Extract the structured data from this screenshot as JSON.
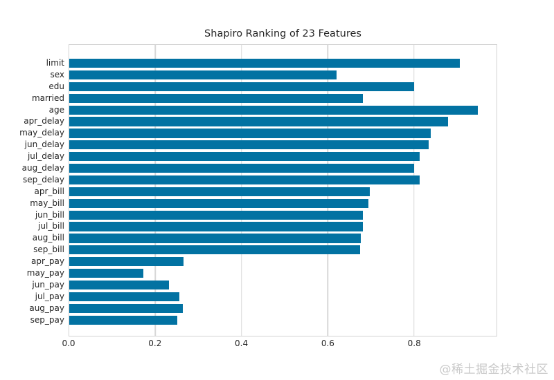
{
  "watermark": "@稀土掘金技术社区",
  "colors": {
    "bar": "#0272a2",
    "grid": "#d7d7d7",
    "spine": "#d2d2d2",
    "text": "#262626",
    "watermark": "#c9c9c9",
    "background": "#ffffff"
  },
  "chart_data": {
    "type": "bar",
    "orientation": "horizontal",
    "title": "Shapiro Ranking of 23 Features",
    "categories": [
      "limit",
      "sex",
      "edu",
      "married",
      "age",
      "apr_delay",
      "may_delay",
      "jun_delay",
      "jul_delay",
      "aug_delay",
      "sep_delay",
      "apr_bill",
      "may_bill",
      "jun_bill",
      "jul_bill",
      "aug_bill",
      "sep_bill",
      "apr_pay",
      "may_pay",
      "jun_pay",
      "jul_pay",
      "aug_pay",
      "sep_pay"
    ],
    "values": [
      0.907,
      0.621,
      0.801,
      0.682,
      0.949,
      0.879,
      0.839,
      0.834,
      0.813,
      0.8,
      0.813,
      0.698,
      0.694,
      0.682,
      0.682,
      0.677,
      0.675,
      0.265,
      0.172,
      0.232,
      0.255,
      0.263,
      0.251
    ],
    "xticks": [
      0.0,
      0.2,
      0.4,
      0.6,
      0.8
    ],
    "xtick_labels": [
      "0.0",
      "0.2",
      "0.4",
      "0.6",
      "0.8"
    ],
    "xlim": [
      0.0,
      0.992
    ],
    "xlabel": "",
    "ylabel": "",
    "grid": "vertical-only",
    "legend": "none",
    "bar_color": "#0272a2"
  }
}
